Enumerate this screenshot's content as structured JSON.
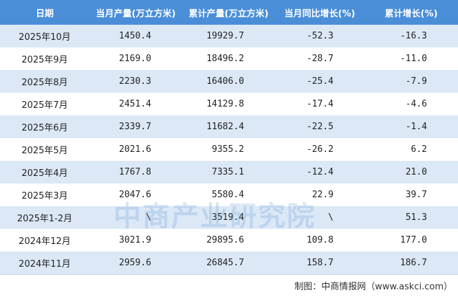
{
  "table": {
    "header": [
      "日期",
      "当月产量(万立方米)",
      "累计产量(万立方米)",
      "当月同比增长(%)",
      "累计增长(%)"
    ],
    "rows": [
      [
        "2025年10月",
        "1450.4",
        "19929.7",
        "-52.3",
        "-16.3"
      ],
      [
        "2025年9月",
        "2169.0",
        "18496.2",
        "-28.7",
        "-11.0"
      ],
      [
        "2025年8月",
        "2230.3",
        "16406.0",
        "-25.4",
        "-7.9"
      ],
      [
        "2025年7月",
        "2451.4",
        "14129.8",
        "-17.4",
        "-4.6"
      ],
      [
        "2025年6月",
        "2339.7",
        "11682.4",
        "-22.5",
        "-1.4"
      ],
      [
        "2025年5月",
        "2021.6",
        "9355.2",
        "-26.2",
        "6.2"
      ],
      [
        "2025年4月",
        "1767.8",
        "7335.1",
        "-12.4",
        "21.0"
      ],
      [
        "2025年3月",
        "2047.6",
        "5580.4",
        "22.9",
        "39.7"
      ],
      [
        "2025年1-2月",
        "\\",
        "3519.4",
        "\\",
        "51.3"
      ],
      [
        "2024年12月",
        "3021.9",
        "29895.6",
        "109.8",
        "177.0"
      ],
      [
        "2024年11月",
        "2959.6",
        "26845.7",
        "158.7",
        "186.7"
      ]
    ]
  },
  "watermark": "中商产业研究院",
  "footer": "制图：中商情报网（www.askci.com）"
}
